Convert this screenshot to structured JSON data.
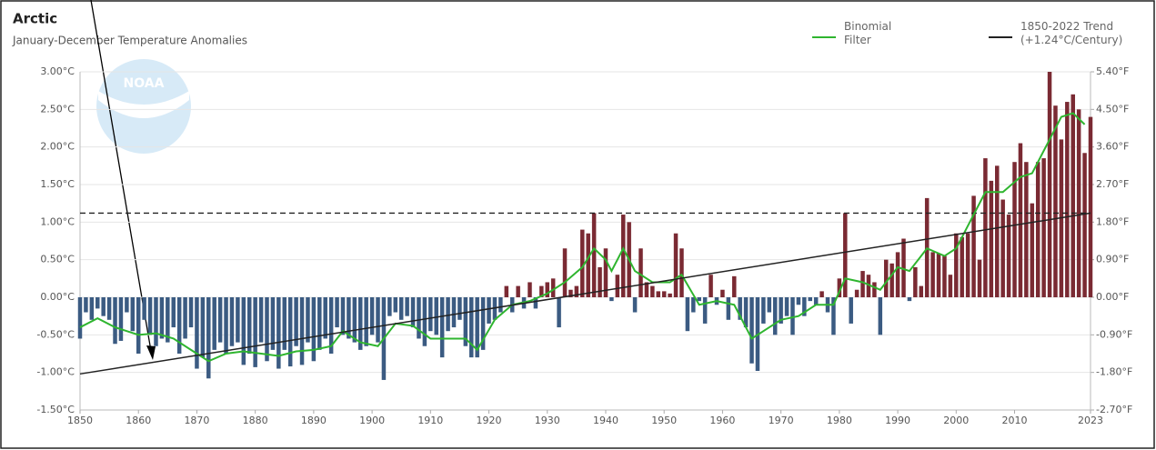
{
  "chart_data": {
    "type": "bar",
    "title": "Arctic",
    "subtitle": "January-December Temperature Anomalies",
    "x": [
      1850,
      1851,
      1852,
      1853,
      1854,
      1855,
      1856,
      1857,
      1858,
      1859,
      1860,
      1861,
      1862,
      1863,
      1864,
      1865,
      1866,
      1867,
      1868,
      1869,
      1870,
      1871,
      1872,
      1873,
      1874,
      1875,
      1876,
      1877,
      1878,
      1879,
      1880,
      1881,
      1882,
      1883,
      1884,
      1885,
      1886,
      1887,
      1888,
      1889,
      1890,
      1891,
      1892,
      1893,
      1894,
      1895,
      1896,
      1897,
      1898,
      1899,
      1900,
      1901,
      1902,
      1903,
      1904,
      1905,
      1906,
      1907,
      1908,
      1909,
      1910,
      1911,
      1912,
      1913,
      1914,
      1915,
      1916,
      1917,
      1918,
      1919,
      1920,
      1921,
      1922,
      1923,
      1924,
      1925,
      1926,
      1927,
      1928,
      1929,
      1930,
      1931,
      1932,
      1933,
      1934,
      1935,
      1936,
      1937,
      1938,
      1939,
      1940,
      1941,
      1942,
      1943,
      1944,
      1945,
      1946,
      1947,
      1948,
      1949,
      1950,
      1951,
      1952,
      1953,
      1954,
      1955,
      1956,
      1957,
      1958,
      1959,
      1960,
      1961,
      1962,
      1963,
      1964,
      1965,
      1966,
      1967,
      1968,
      1969,
      1970,
      1971,
      1972,
      1973,
      1974,
      1975,
      1976,
      1977,
      1978,
      1979,
      1980,
      1981,
      1982,
      1983,
      1984,
      1985,
      1986,
      1987,
      1988,
      1989,
      1990,
      1991,
      1992,
      1993,
      1994,
      1995,
      1996,
      1997,
      1998,
      1999,
      2000,
      2001,
      2002,
      2003,
      2004,
      2005,
      2006,
      2007,
      2008,
      2009,
      2010,
      2011,
      2012,
      2013,
      2014,
      2015,
      2016,
      2017,
      2018,
      2019,
      2020,
      2021,
      2022,
      2023
    ],
    "values": [
      -0.55,
      -0.2,
      -0.3,
      -0.15,
      -0.25,
      -0.3,
      -0.62,
      -0.58,
      -0.2,
      -0.45,
      -0.75,
      -0.3,
      -0.5,
      -0.65,
      -0.55,
      -0.6,
      -0.4,
      -0.75,
      -0.55,
      -0.4,
      -0.95,
      -0.8,
      -1.08,
      -0.7,
      -0.6,
      -0.75,
      -0.65,
      -0.6,
      -0.9,
      -0.75,
      -0.93,
      -0.6,
      -0.85,
      -0.7,
      -0.95,
      -0.7,
      -0.92,
      -0.65,
      -0.9,
      -0.6,
      -0.85,
      -0.7,
      -0.55,
      -0.75,
      -0.4,
      -0.5,
      -0.55,
      -0.6,
      -0.7,
      -0.65,
      -0.5,
      -0.6,
      -1.1,
      -0.25,
      -0.2,
      -0.3,
      -0.25,
      -0.4,
      -0.55,
      -0.65,
      -0.45,
      -0.5,
      -0.8,
      -0.45,
      -0.4,
      -0.3,
      -0.65,
      -0.8,
      -0.8,
      -0.7,
      -0.35,
      -0.3,
      -0.2,
      0.15,
      -0.2,
      0.15,
      -0.15,
      0.2,
      -0.15,
      0.15,
      0.2,
      0.25,
      -0.4,
      0.65,
      0.1,
      0.15,
      0.9,
      0.85,
      1.12,
      0.4,
      0.65,
      -0.05,
      0.3,
      1.1,
      1.0,
      -0.2,
      0.65,
      0.2,
      0.15,
      0.08,
      0.08,
      0.05,
      0.85,
      0.65,
      -0.45,
      -0.2,
      -0.05,
      -0.35,
      0.3,
      -0.1,
      0.1,
      -0.3,
      0.28,
      -0.3,
      -0.4,
      -0.88,
      -0.98,
      -0.35,
      -0.2,
      -0.5,
      -0.35,
      -0.25,
      -0.5,
      -0.1,
      -0.25,
      -0.05,
      -0.1,
      0.08,
      -0.2,
      -0.5,
      0.25,
      1.12,
      -0.35,
      0.1,
      0.35,
      0.3,
      0.2,
      -0.5,
      0.5,
      0.45,
      0.6,
      0.78,
      -0.05,
      0.4,
      0.15,
      1.32,
      0.6,
      0.58,
      0.55,
      0.3,
      0.85,
      0.8,
      0.85,
      1.35,
      0.5,
      1.85,
      1.55,
      1.75,
      1.3,
      1.1,
      1.8,
      2.05,
      1.8,
      1.25,
      1.8,
      1.85,
      3.0,
      2.55,
      2.1,
      2.6,
      2.7,
      2.5,
      1.92,
      2.4
    ],
    "positive_color": "#7a2a33",
    "negative_color": "#3b5b82",
    "series": [
      {
        "name": "Binomial Filter",
        "color": "#2fb52f",
        "x": [
          1850,
          1853,
          1856,
          1858,
          1860,
          1863,
          1866,
          1869,
          1872,
          1875,
          1878,
          1881,
          1884,
          1887,
          1890,
          1893,
          1895,
          1898,
          1901,
          1904,
          1907,
          1910,
          1913,
          1916,
          1918,
          1921,
          1924,
          1927,
          1930,
          1933,
          1936,
          1938,
          1940,
          1941,
          1943,
          1945,
          1948,
          1951,
          1953,
          1956,
          1959,
          1962,
          1965,
          1967,
          1970,
          1973,
          1976,
          1979,
          1981,
          1984,
          1987,
          1990,
          1992,
          1995,
          1998,
          2000,
          2002,
          2005,
          2008,
          2011,
          2013,
          2016,
          2018,
          2020,
          2022
        ],
        "values": [
          -0.4,
          -0.28,
          -0.4,
          -0.45,
          -0.5,
          -0.48,
          -0.55,
          -0.7,
          -0.85,
          -0.75,
          -0.72,
          -0.75,
          -0.78,
          -0.72,
          -0.7,
          -0.65,
          -0.45,
          -0.6,
          -0.65,
          -0.35,
          -0.38,
          -0.55,
          -0.55,
          -0.55,
          -0.7,
          -0.3,
          -0.1,
          -0.05,
          0.05,
          0.2,
          0.4,
          0.65,
          0.5,
          0.35,
          0.65,
          0.35,
          0.2,
          0.2,
          0.3,
          -0.1,
          -0.05,
          -0.1,
          -0.55,
          -0.45,
          -0.3,
          -0.25,
          -0.1,
          -0.1,
          0.25,
          0.2,
          0.1,
          0.4,
          0.35,
          0.65,
          0.55,
          0.65,
          0.95,
          1.4,
          1.4,
          1.6,
          1.65,
          2.1,
          2.4,
          2.45,
          2.3
        ]
      },
      {
        "name": "1850-2022 Trend (+1.24°C/Century)",
        "color": "#222222",
        "x": [
          1850,
          2023
        ],
        "values": [
          -1.02,
          1.12
        ]
      }
    ],
    "reference_line": 1.12,
    "xlim": [
      1850,
      2023
    ],
    "xticks": [
      1850,
      1860,
      1870,
      1880,
      1890,
      1900,
      1910,
      1920,
      1930,
      1940,
      1950,
      1960,
      1970,
      1980,
      1990,
      2000,
      2010,
      2023
    ],
    "ylim": [
      -1.5,
      3.0
    ],
    "yticks": [
      {
        "value": 3.0,
        "label": "3.00°C"
      },
      {
        "value": 2.5,
        "label": "2.50°C"
      },
      {
        "value": 2.0,
        "label": "2.00°C"
      },
      {
        "value": 1.5,
        "label": "1.50°C"
      },
      {
        "value": 1.0,
        "label": "1.00°C"
      },
      {
        "value": 0.5,
        "label": "0.50°C"
      },
      {
        "value": 0,
        "label": "0.00°C"
      },
      {
        "value": -0.5,
        "label": "-0.50°C"
      },
      {
        "value": -1.0,
        "label": "-1.00°C"
      },
      {
        "value": -1.5,
        "label": "-1.50°C"
      }
    ],
    "y2lim": [
      -2.7,
      5.4
    ],
    "y2ticks": [
      {
        "value": 5.4,
        "label": "5.40°F"
      },
      {
        "value": 4.5,
        "label": "4.50°F"
      },
      {
        "value": 3.6,
        "label": "3.60°F"
      },
      {
        "value": 2.7,
        "label": "2.70°F"
      },
      {
        "value": 1.8,
        "label": "1.80°F"
      },
      {
        "value": 0.9,
        "label": "0.90°F"
      },
      {
        "value": 0,
        "label": "0.00°F"
      },
      {
        "value": -0.9,
        "label": "-0.90°F"
      },
      {
        "value": -1.8,
        "label": "-1.80°F"
      },
      {
        "value": -2.7,
        "label": "-2.70°F"
      }
    ],
    "grid": true
  }
}
